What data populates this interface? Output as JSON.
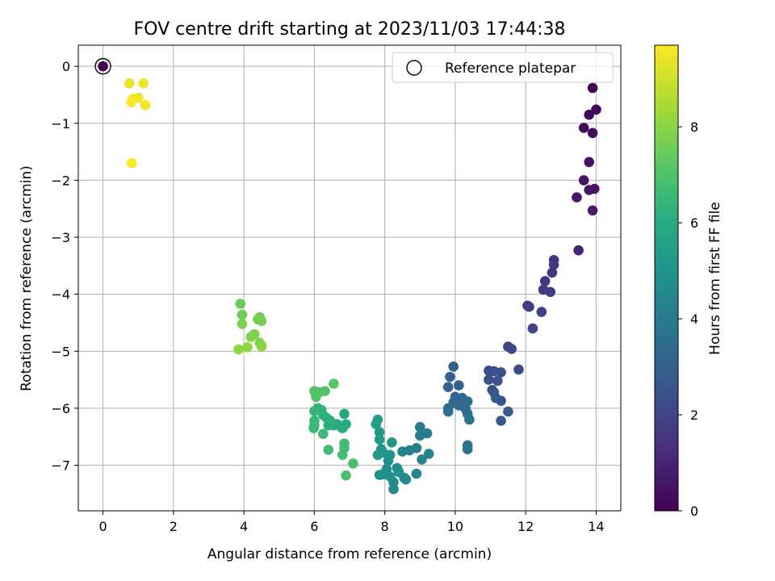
{
  "chart_data": {
    "type": "scatter",
    "title": "FOV centre drift starting at 2023/11/03 17:44:38",
    "xlabel": "Angular distance from reference (arcmin)",
    "ylabel": "Rotation from reference (arcmin)",
    "xlim": [
      -0.7,
      14.7
    ],
    "ylim": [
      -7.8,
      0.37
    ],
    "xticks": [
      0,
      2,
      4,
      6,
      8,
      10,
      12,
      14
    ],
    "yticks": [
      0,
      -1,
      -2,
      -3,
      -4,
      -5,
      -6,
      -7
    ],
    "grid": true,
    "legend": {
      "position": "top-right",
      "entries": [
        "Reference platepar"
      ]
    },
    "reference_point": {
      "x": 0,
      "y": 0,
      "hours": 0
    },
    "colorbar": {
      "label": "Hours from first FF file",
      "range": [
        0,
        9.7
      ],
      "ticks": [
        0,
        2,
        4,
        6,
        8
      ],
      "colormap": "viridis"
    },
    "points": [
      [
        13.9,
        -0.38,
        0.1
      ],
      [
        14.0,
        -0.76,
        0.15
      ],
      [
        13.8,
        -0.85,
        0.2
      ],
      [
        13.65,
        -1.08,
        0.3
      ],
      [
        13.9,
        -1.17,
        0.35
      ],
      [
        13.8,
        -1.68,
        0.45
      ],
      [
        13.65,
        -2.0,
        0.5
      ],
      [
        13.8,
        -2.17,
        0.55
      ],
      [
        13.95,
        -2.15,
        0.6
      ],
      [
        13.45,
        -2.3,
        0.65
      ],
      [
        13.9,
        -2.53,
        0.75
      ],
      [
        13.5,
        -3.23,
        1.0
      ],
      [
        12.8,
        -3.4,
        1.5
      ],
      [
        12.8,
        -3.48,
        1.55
      ],
      [
        12.75,
        -3.62,
        1.6
      ],
      [
        12.55,
        -3.77,
        1.65
      ],
      [
        12.5,
        -3.92,
        1.7
      ],
      [
        12.7,
        -3.96,
        1.75
      ],
      [
        12.05,
        -4.2,
        1.8
      ],
      [
        12.1,
        -4.22,
        1.85
      ],
      [
        12.45,
        -4.31,
        1.9
      ],
      [
        12.2,
        -4.6,
        1.95
      ],
      [
        11.5,
        -4.92,
        2.1
      ],
      [
        11.6,
        -4.96,
        2.15
      ],
      [
        11.8,
        -5.32,
        2.2
      ],
      [
        10.95,
        -5.34,
        2.3
      ],
      [
        11.1,
        -5.35,
        2.35
      ],
      [
        11.3,
        -5.37,
        2.4
      ],
      [
        10.95,
        -5.5,
        2.45
      ],
      [
        11.2,
        -5.52,
        2.5
      ],
      [
        11.05,
        -5.68,
        2.55
      ],
      [
        11.1,
        -5.72,
        2.6
      ],
      [
        11.15,
        -5.82,
        2.65
      ],
      [
        11.3,
        -5.87,
        2.7
      ],
      [
        11.5,
        -6.06,
        2.75
      ],
      [
        11.3,
        -6.22,
        2.8
      ],
      [
        9.95,
        -5.27,
        3.0
      ],
      [
        9.85,
        -5.45,
        3.05
      ],
      [
        10.1,
        -5.6,
        3.1
      ],
      [
        9.8,
        -5.63,
        3.15
      ],
      [
        10.0,
        -5.8,
        3.2
      ],
      [
        10.2,
        -5.82,
        3.25
      ],
      [
        9.95,
        -5.9,
        3.3
      ],
      [
        10.1,
        -5.95,
        3.35
      ],
      [
        10.35,
        -5.88,
        3.4
      ],
      [
        9.8,
        -6.0,
        3.45
      ],
      [
        10.3,
        -6.02,
        3.5
      ],
      [
        9.8,
        -6.06,
        3.55
      ],
      [
        10.35,
        -6.1,
        3.6
      ],
      [
        10.4,
        -6.2,
        3.65
      ],
      [
        10.35,
        -6.65,
        3.7
      ],
      [
        10.35,
        -6.72,
        3.75
      ],
      [
        9.0,
        -6.33,
        4.0
      ],
      [
        9.2,
        -6.44,
        4.05
      ],
      [
        9.0,
        -6.48,
        4.1
      ],
      [
        8.9,
        -6.7,
        4.15
      ],
      [
        8.7,
        -6.74,
        4.2
      ],
      [
        8.5,
        -6.76,
        4.25
      ],
      [
        9.25,
        -6.8,
        4.3
      ],
      [
        9.05,
        -6.9,
        4.35
      ],
      [
        8.9,
        -7.15,
        4.4
      ],
      [
        8.55,
        -7.22,
        4.45
      ],
      [
        8.6,
        -7.25,
        4.5
      ],
      [
        8.25,
        -7.3,
        4.55
      ],
      [
        8.25,
        -7.42,
        4.6
      ],
      [
        8.35,
        -7.05,
        4.65
      ],
      [
        8.05,
        -7.07,
        4.7
      ],
      [
        8.15,
        -7.2,
        4.75
      ],
      [
        7.95,
        -7.16,
        4.8
      ],
      [
        7.85,
        -7.17,
        4.85
      ],
      [
        8.4,
        -7.12,
        4.9
      ],
      [
        8.1,
        -6.92,
        4.95
      ],
      [
        8.15,
        -6.82,
        5.0
      ],
      [
        8.2,
        -6.6,
        5.05
      ],
      [
        7.9,
        -6.72,
        5.1
      ],
      [
        7.95,
        -6.78,
        5.15
      ],
      [
        7.8,
        -6.82,
        5.2
      ],
      [
        7.85,
        -6.42,
        5.25
      ],
      [
        7.85,
        -6.55,
        5.3
      ],
      [
        7.75,
        -6.28,
        5.35
      ],
      [
        7.8,
        -6.2,
        5.4
      ],
      [
        6.85,
        -6.1,
        5.8
      ],
      [
        6.9,
        -6.28,
        5.85
      ],
      [
        6.8,
        -6.35,
        5.9
      ],
      [
        6.75,
        -6.32,
        5.95
      ],
      [
        6.65,
        -6.28,
        6.0
      ],
      [
        6.55,
        -6.3,
        6.05
      ],
      [
        6.4,
        -6.3,
        6.1
      ],
      [
        6.45,
        -6.22,
        6.15
      ],
      [
        6.35,
        -6.17,
        6.2
      ],
      [
        6.25,
        -6.12,
        6.25
      ],
      [
        6.2,
        -6.03,
        6.3
      ],
      [
        6.1,
        -6.0,
        6.35
      ],
      [
        6.0,
        -6.05,
        6.4
      ],
      [
        6.0,
        -6.22,
        6.45
      ],
      [
        6.0,
        -6.3,
        6.5
      ],
      [
        5.98,
        -6.35,
        6.55
      ],
      [
        6.25,
        -6.45,
        6.6
      ],
      [
        6.4,
        -6.73,
        6.65
      ],
      [
        6.85,
        -6.62,
        6.7
      ],
      [
        6.85,
        -6.7,
        6.75
      ],
      [
        6.8,
        -6.82,
        6.8
      ],
      [
        7.1,
        -6.97,
        6.85
      ],
      [
        6.9,
        -7.18,
        6.9
      ],
      [
        6.0,
        -5.7,
        6.95
      ],
      [
        6.05,
        -5.8,
        7.0
      ],
      [
        6.15,
        -5.72,
        7.05
      ],
      [
        6.3,
        -5.7,
        7.1
      ],
      [
        6.55,
        -5.57,
        7.15
      ],
      [
        3.9,
        -4.17,
        7.5
      ],
      [
        3.95,
        -4.36,
        7.55
      ],
      [
        4.45,
        -4.4,
        7.6
      ],
      [
        4.4,
        -4.44,
        7.65
      ],
      [
        4.5,
        -4.47,
        7.7
      ],
      [
        3.95,
        -4.52,
        7.75
      ],
      [
        4.3,
        -4.7,
        7.8
      ],
      [
        4.2,
        -4.75,
        7.85
      ],
      [
        4.45,
        -4.85,
        7.9
      ],
      [
        4.5,
        -4.9,
        7.95
      ],
      [
        4.5,
        -4.92,
        8.0
      ],
      [
        4.1,
        -4.93,
        8.05
      ],
      [
        3.85,
        -4.97,
        8.1
      ],
      [
        0.75,
        -0.3,
        9.4
      ],
      [
        1.15,
        -0.3,
        9.45
      ],
      [
        1.0,
        -0.55,
        9.5
      ],
      [
        0.85,
        -0.57,
        9.55
      ],
      [
        0.8,
        -0.63,
        9.6
      ],
      [
        1.2,
        -0.68,
        9.62
      ],
      [
        0.82,
        -1.7,
        9.65
      ]
    ]
  }
}
